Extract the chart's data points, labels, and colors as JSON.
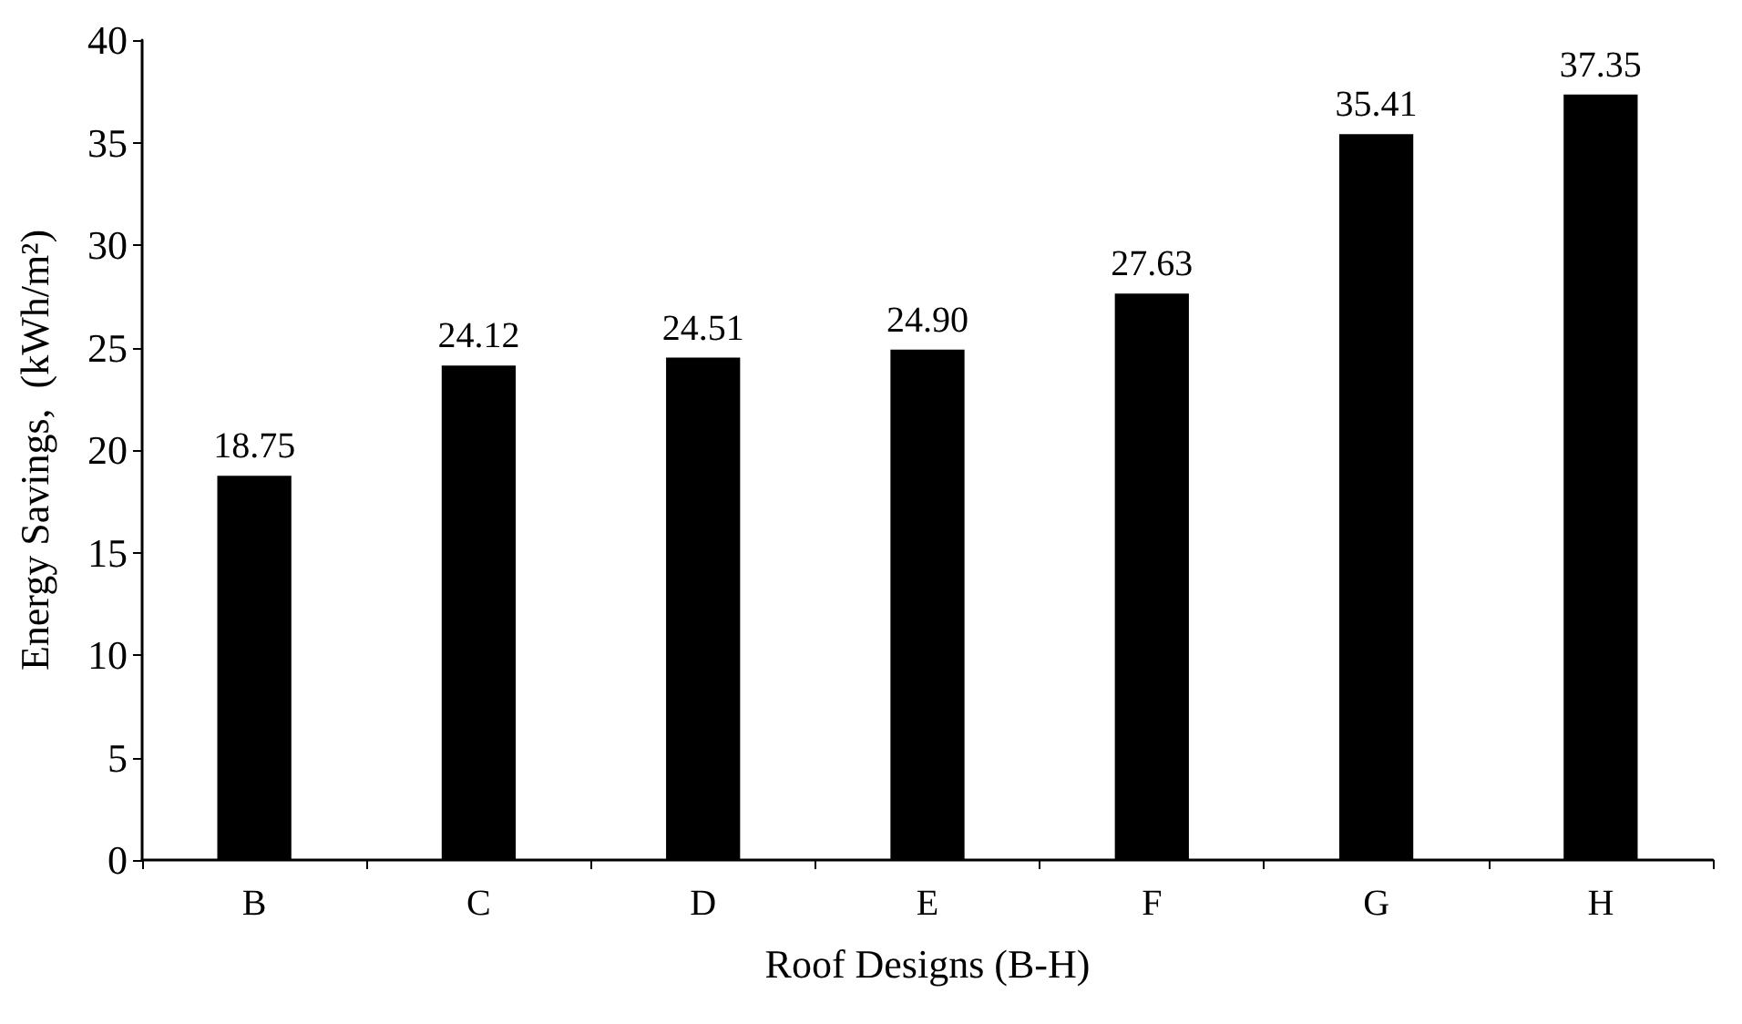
{
  "chart_data": {
    "type": "bar",
    "xlabel": "Roof Designs (B-H)",
    "ylabel": "Energy Savings,  (kWh/m²)",
    "categories": [
      "B",
      "C",
      "D",
      "E",
      "F",
      "G",
      "H"
    ],
    "values": [
      18.75,
      24.12,
      24.51,
      24.9,
      27.63,
      35.41,
      37.35
    ],
    "value_labels": [
      "18.75",
      "24.12",
      "24.51",
      "24.90",
      "27.63",
      "35.41",
      "37.35"
    ],
    "color": "#000000",
    "ylim": [
      0,
      40
    ],
    "yticks": [
      0,
      5,
      10,
      15,
      20,
      25,
      30,
      35,
      40
    ],
    "grid": false
  }
}
